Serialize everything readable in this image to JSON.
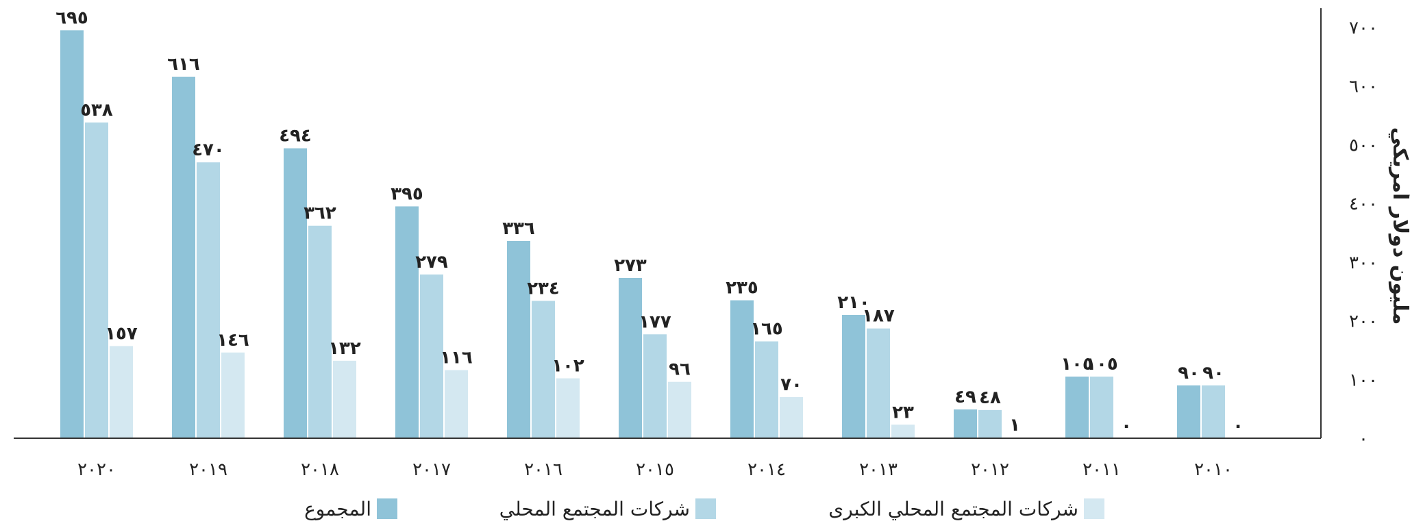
{
  "chart_data": {
    "type": "bar",
    "title": "",
    "ylabel": "مليون دولار أمريكي",
    "xlabel": "",
    "ylim": [
      0,
      700
    ],
    "y_ticks": [
      0,
      100,
      200,
      300,
      400,
      500,
      600,
      700
    ],
    "y_tick_labels": [
      "٠",
      "١٠٠",
      "٢٠٠",
      "٣٠٠",
      "٤٠٠",
      "٥٠٠",
      "٦٠٠",
      "٧٠٠"
    ],
    "grid": false,
    "legend_position": "bottom",
    "categories": [
      "٢٠٢٠",
      "٢٠١٩",
      "٢٠١٨",
      "٢٠١٧",
      "٢٠١٦",
      "٢٠١٥",
      "٢٠١٤",
      "٢٠١٣",
      "٢٠١٢",
      "٢٠١١",
      "٢٠١٠"
    ],
    "series": [
      {
        "name": "المجموع",
        "color": "#8fc3d8",
        "values": [
          695,
          616,
          494,
          395,
          336,
          273,
          235,
          210,
          49,
          105,
          90
        ],
        "labels": [
          "٦٩٥",
          "٦١٦",
          "٤٩٤",
          "٣٩٥",
          "٣٣٦",
          "٢٧٣",
          "٢٣٥",
          "٢١٠",
          "٤٩",
          "١٠٥",
          "٩٠"
        ]
      },
      {
        "name": "شركات المجتمع المحلي",
        "color": "#b3d7e6",
        "values": [
          538,
          470,
          362,
          279,
          234,
          177,
          165,
          187,
          48,
          105,
          90
        ],
        "labels": [
          "٥٣٨",
          "٤٧٠",
          "٣٦٢",
          "٢٧٩",
          "٢٣٤",
          "١٧٧",
          "١٦٥",
          "١٨٧",
          "٤٨",
          "١٠٥",
          "٩٠"
        ]
      },
      {
        "name": "شركات المجتمع المحلي الكبرى",
        "color": "#d4e8f1",
        "values": [
          157,
          146,
          132,
          116,
          102,
          96,
          70,
          23,
          1,
          0,
          0
        ],
        "labels": [
          "١٥٧",
          "١٤٦",
          "١٣٢",
          "١١٦",
          "١٠٢",
          "٩٦",
          "٧٠",
          "٢٣",
          "١",
          "٠",
          "٠"
        ]
      }
    ]
  }
}
